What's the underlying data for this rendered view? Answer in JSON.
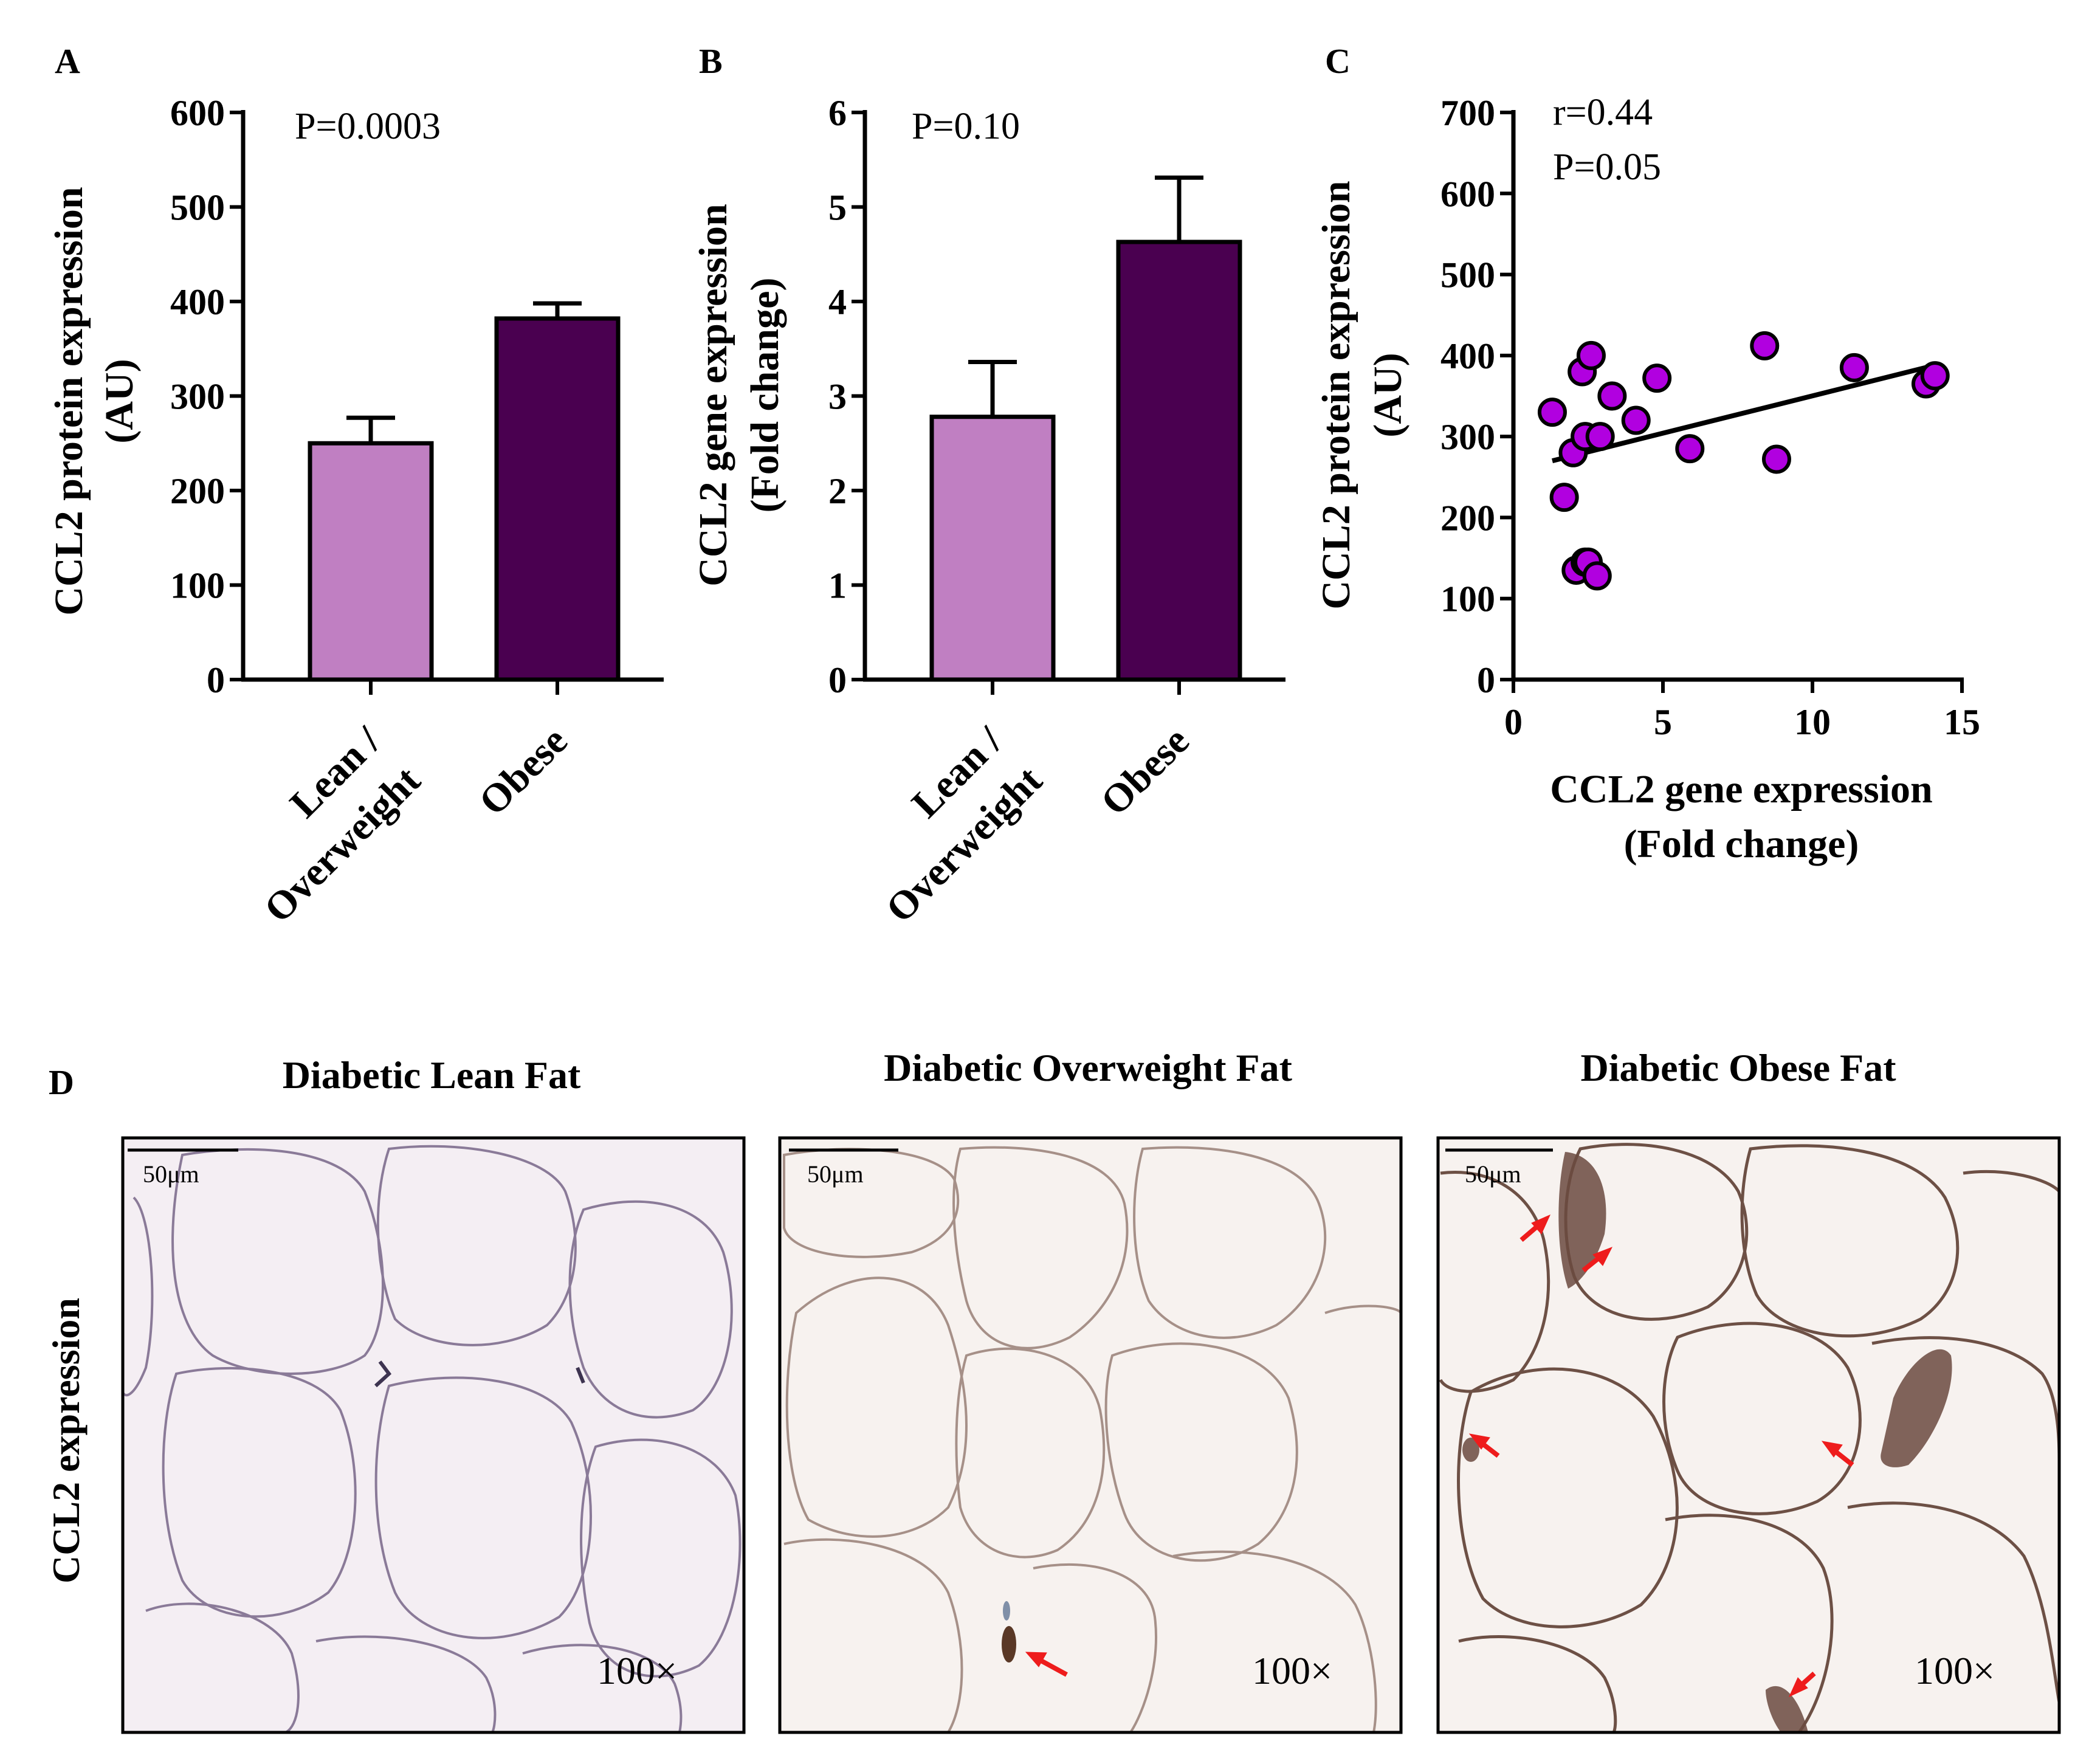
{
  "panel_labels": {
    "a": "A",
    "b": "B",
    "c": "C",
    "d": "D"
  },
  "colors": {
    "lean": "#c07fc2",
    "obese": "#4a0050",
    "scatter": "#b100e0",
    "arrow": "#ee1c1c",
    "tissue_bg": "#f4eef3"
  },
  "chart_data": [
    {
      "id": "A",
      "type": "bar",
      "categories": [
        "Lean /",
        "Obese"
      ],
      "category_lines": [
        [
          "Lean /",
          "Overweight"
        ],
        [
          "Obese"
        ]
      ],
      "values": [
        250,
        382
      ],
      "errors": [
        27,
        16
      ],
      "colors": [
        "#c07fc2",
        "#4a0050"
      ],
      "ylabel": [
        "CCL2 protein expression",
        "(AU)"
      ],
      "ylim": [
        0,
        600
      ],
      "yticks": [
        "0",
        "100",
        "200",
        "300",
        "400",
        "500",
        "600"
      ],
      "annotation": "P=0.0003"
    },
    {
      "id": "B",
      "type": "bar",
      "categories": [
        "Lean /",
        "Obese"
      ],
      "category_lines": [
        [
          "Lean /",
          "Overweight"
        ],
        [
          "Obese"
        ]
      ],
      "values": [
        2.78,
        4.63
      ],
      "errors": [
        0.58,
        0.68
      ],
      "colors": [
        "#c07fc2",
        "#4a0050"
      ],
      "ylabel": [
        "CCL2 gene expression",
        "(Fold change)"
      ],
      "ylim": [
        0,
        6
      ],
      "yticks": [
        "0",
        "1",
        "2",
        "3",
        "4",
        "5",
        "6"
      ],
      "annotation": "P=0.10"
    },
    {
      "id": "C",
      "type": "scatter",
      "x": [
        1.3,
        1.7,
        2.0,
        2.1,
        2.3,
        2.4,
        2.4,
        2.5,
        2.6,
        2.8,
        2.9,
        3.3,
        4.1,
        4.8,
        5.9,
        8.4,
        8.8,
        11.4,
        13.8,
        14.1
      ],
      "y": [
        330,
        225,
        280,
        135,
        380,
        300,
        145,
        145,
        400,
        128,
        300,
        350,
        320,
        372,
        285,
        412,
        272,
        385,
        365,
        375
      ],
      "fit_line": {
        "x": [
          1.3,
          14.1
        ],
        "y": [
          270,
          388
        ]
      },
      "xlabel": [
        "CCL2 gene expression",
        "(Fold change)"
      ],
      "ylabel": [
        "CCL2 protein expression",
        "(AU)"
      ],
      "xlim": [
        0,
        15
      ],
      "ylim": [
        0,
        700
      ],
      "xticks": [
        "0",
        "5",
        "10",
        "15"
      ],
      "yticks": [
        "0",
        "100",
        "200",
        "300",
        "400",
        "500",
        "600",
        "700"
      ],
      "annotations": [
        "r=0.44",
        "P=0.05"
      ]
    }
  ],
  "micrographs": {
    "row_label": "CCL2 expression",
    "panels": [
      {
        "title": "Diabetic Lean Fat",
        "scale_bar": "50μm",
        "magnification": "100×"
      },
      {
        "title": "Diabetic Overweight Fat",
        "scale_bar": "50μm",
        "magnification": "100×"
      },
      {
        "title": "Diabetic Obese Fat",
        "scale_bar": "50μm",
        "magnification": "100×"
      }
    ]
  }
}
